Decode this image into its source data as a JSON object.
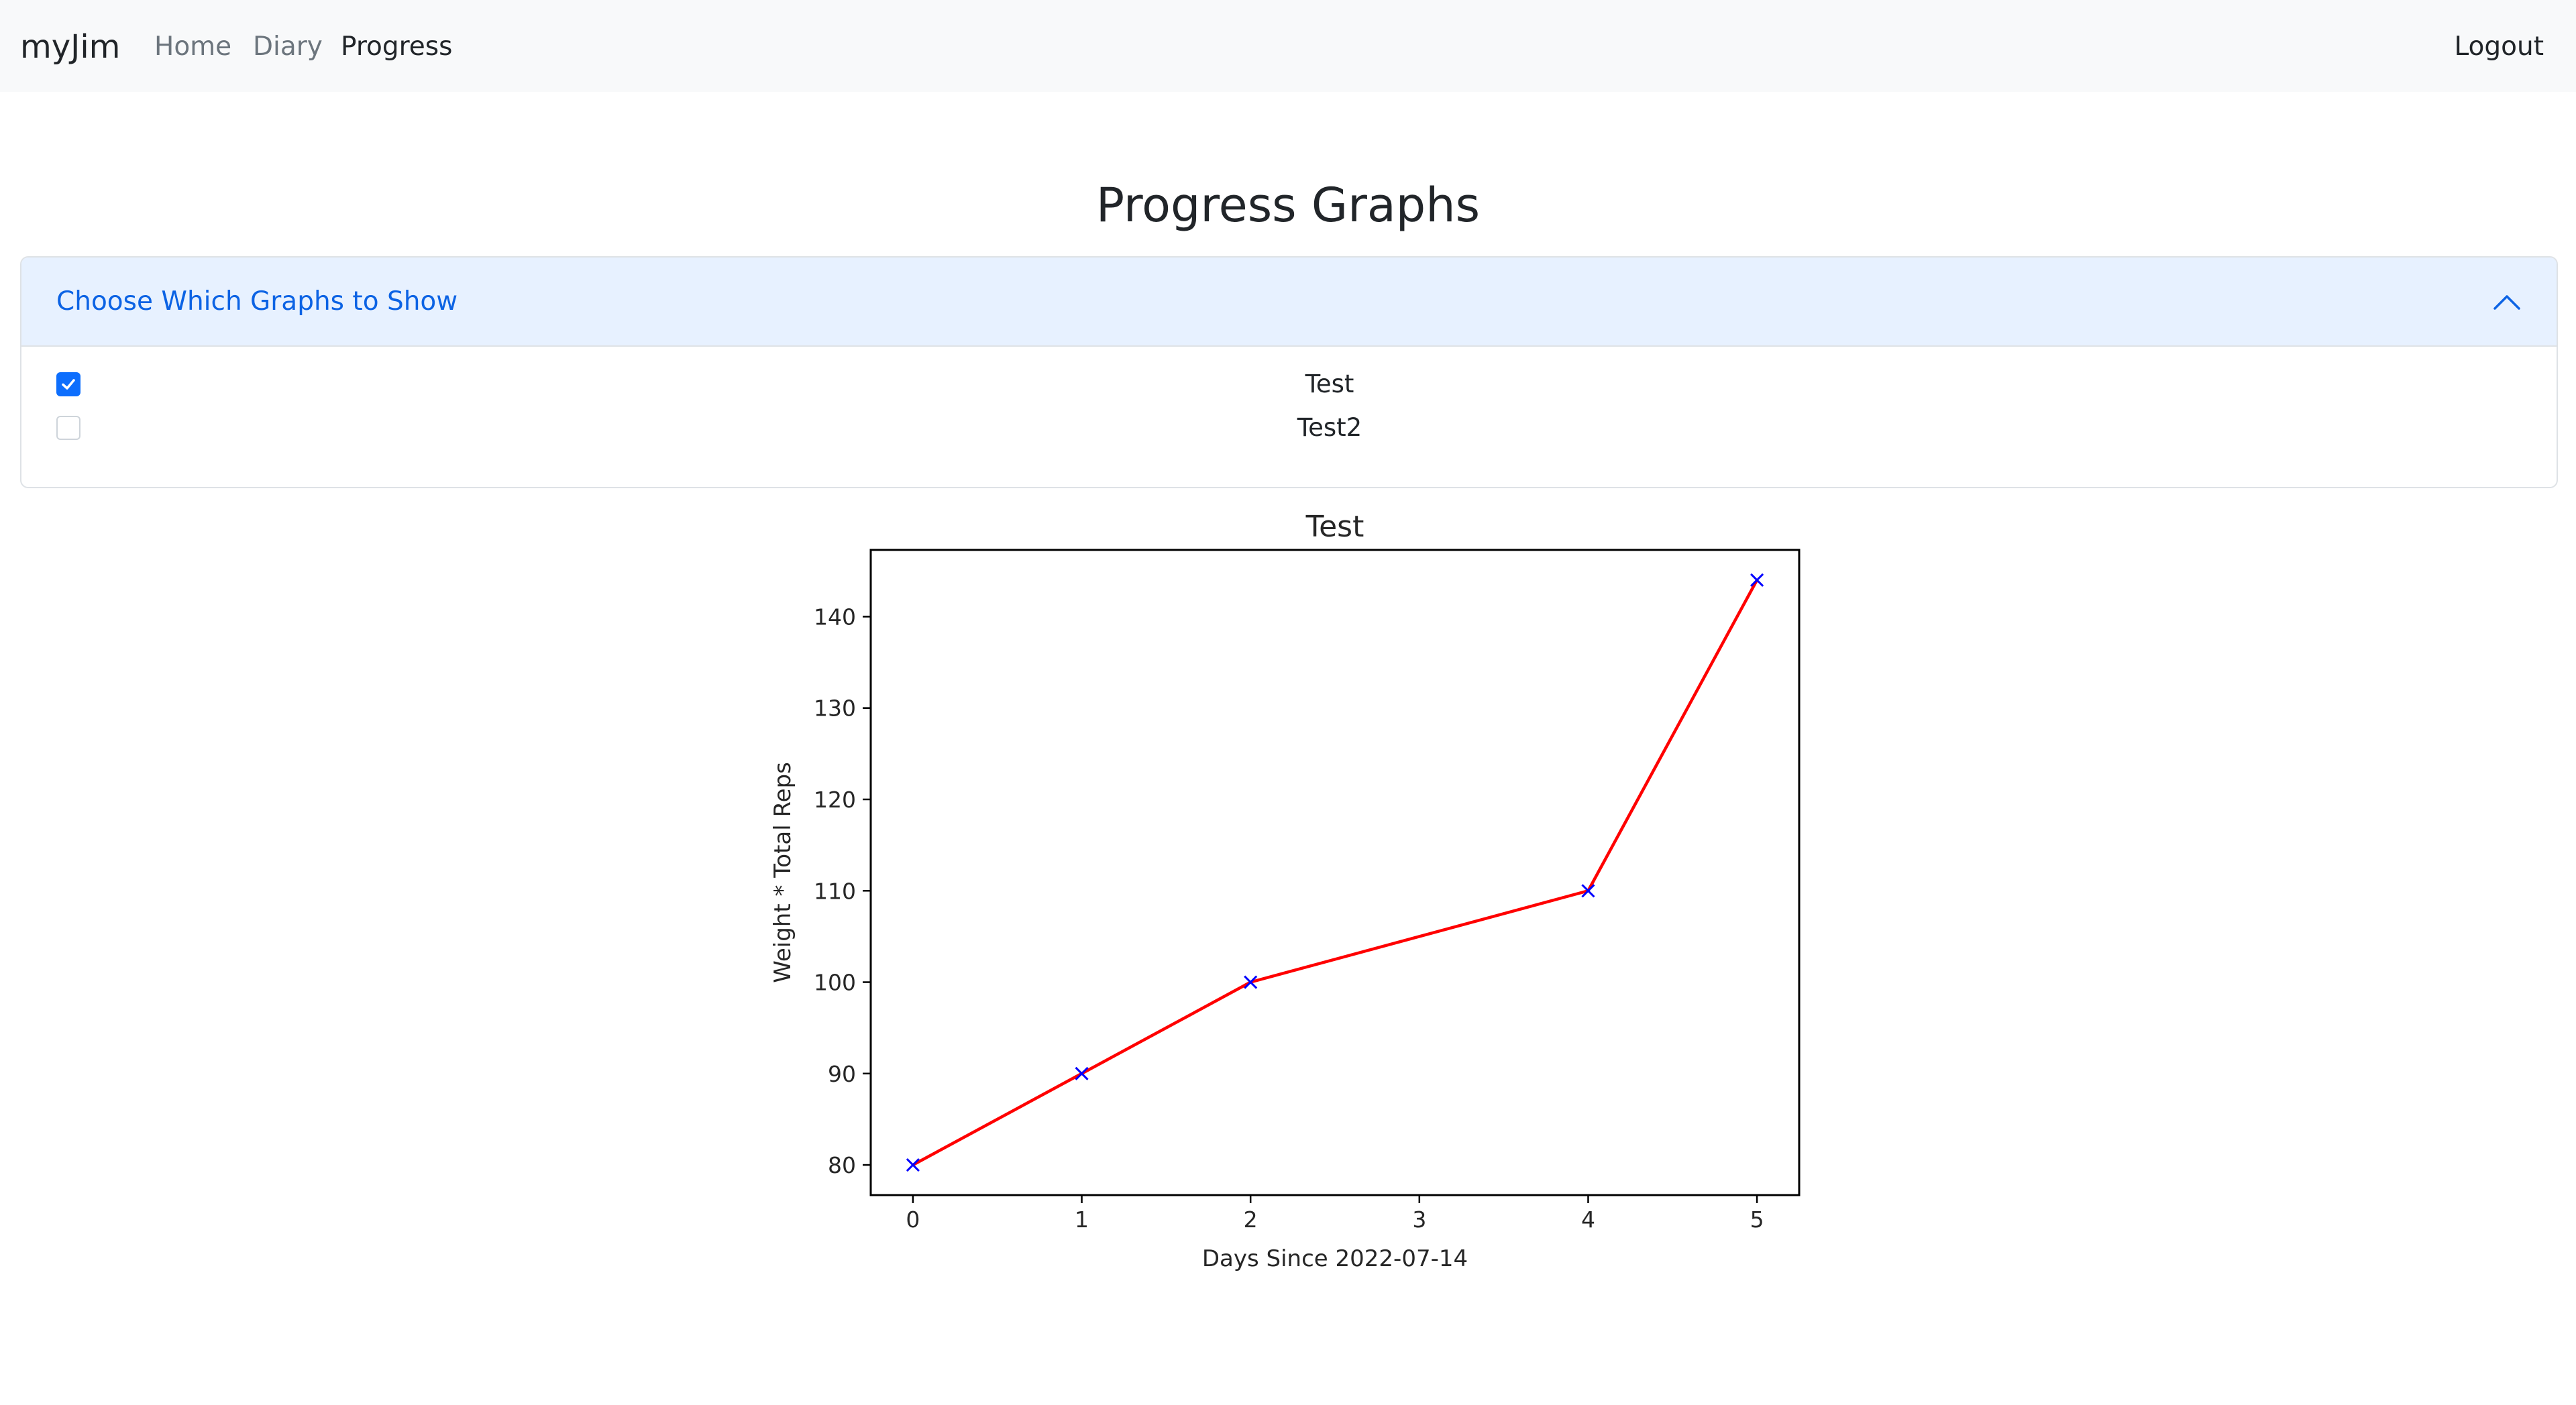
{
  "navbar": {
    "brand": "myJim",
    "links": [
      {
        "label": "Home",
        "active": false
      },
      {
        "label": "Diary",
        "active": false
      },
      {
        "label": "Progress",
        "active": true
      }
    ],
    "logout_label": "Logout"
  },
  "page_title": "Progress Graphs",
  "accordion": {
    "header_label": "Choose Which Graphs to Show",
    "expanded": true,
    "options": [
      {
        "label": "Test",
        "checked": true
      },
      {
        "label": "Test2",
        "checked": false
      }
    ]
  },
  "colors": {
    "accent": "#0d6efd",
    "accordion_header_bg": "#e7f1ff",
    "accordion_header_text": "#0c63e4",
    "line_color": "#ff0000",
    "marker_color": "#0000ff"
  },
  "chart_data": {
    "type": "line",
    "title": "Test",
    "xlabel": "Days Since 2022-07-14",
    "ylabel": "Weight * Total Reps",
    "x": [
      0,
      1,
      2,
      4,
      5
    ],
    "y": [
      80,
      90,
      100,
      110,
      144
    ],
    "xticks": [
      0,
      1,
      2,
      3,
      4,
      5
    ],
    "yticks": [
      80,
      90,
      100,
      110,
      120,
      130,
      140
    ],
    "xlim": [
      -0.25,
      5.25
    ],
    "ylim": [
      76.7,
      147.3
    ],
    "grid": false,
    "marker": "x"
  }
}
